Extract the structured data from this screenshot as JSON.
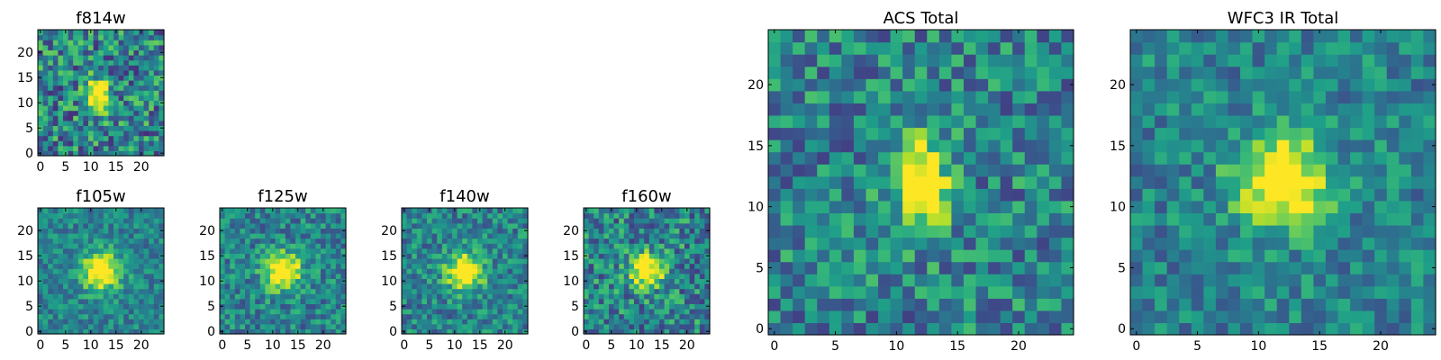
{
  "chart_data": [
    {
      "type": "heatmap",
      "title": "f814w",
      "colormap": "viridis",
      "x_ticks": [
        "0",
        "5",
        "10",
        "15",
        "20"
      ],
      "y_ticks": [
        "0",
        "5",
        "10",
        "15",
        "20"
      ],
      "grid": [
        25,
        25
      ],
      "center": [
        11.5,
        11.5
      ],
      "spread": [
        1.6,
        2.3
      ],
      "noise": 0.32,
      "seed": 11,
      "brightness_range": [
        0,
        1
      ]
    },
    {
      "type": "heatmap",
      "title": "f105w",
      "colormap": "viridis",
      "x_ticks": [
        "0",
        "5",
        "10",
        "15",
        "20"
      ],
      "y_ticks": [
        "0",
        "5",
        "10",
        "15",
        "20"
      ],
      "grid": [
        25,
        25
      ],
      "center": [
        12.0,
        12.0
      ],
      "spread": [
        2.6,
        2.6
      ],
      "noise": 0.18,
      "seed": 23,
      "brightness_range": [
        0,
        1
      ]
    },
    {
      "type": "heatmap",
      "title": "f125w",
      "colormap": "viridis",
      "x_ticks": [
        "0",
        "5",
        "10",
        "15",
        "20"
      ],
      "y_ticks": [
        "0",
        "5",
        "10",
        "15",
        "20"
      ],
      "grid": [
        25,
        25
      ],
      "center": [
        12.0,
        12.0
      ],
      "spread": [
        2.5,
        2.5
      ],
      "noise": 0.22,
      "seed": 37,
      "brightness_range": [
        0,
        1
      ]
    },
    {
      "type": "heatmap",
      "title": "f140w",
      "colormap": "viridis",
      "x_ticks": [
        "0",
        "5",
        "10",
        "15",
        "20"
      ],
      "y_ticks": [
        "0",
        "5",
        "10",
        "15",
        "20"
      ],
      "grid": [
        25,
        25
      ],
      "center": [
        12.0,
        12.0
      ],
      "spread": [
        2.5,
        2.5
      ],
      "noise": 0.22,
      "seed": 41,
      "brightness_range": [
        0,
        1
      ]
    },
    {
      "type": "heatmap",
      "title": "f160w",
      "colormap": "viridis",
      "x_ticks": [
        "0",
        "5",
        "10",
        "15",
        "20"
      ],
      "y_ticks": [
        "0",
        "5",
        "10",
        "15",
        "20"
      ],
      "grid": [
        25,
        25
      ],
      "center": [
        12.0,
        12.0
      ],
      "spread": [
        2.3,
        2.3
      ],
      "noise": 0.28,
      "seed": 53,
      "brightness_range": [
        0,
        1
      ]
    },
    {
      "type": "heatmap",
      "title": "ACS Total",
      "colormap": "viridis",
      "x_ticks": [
        "0",
        "5",
        "10",
        "15",
        "20"
      ],
      "y_ticks": [
        "0",
        "5",
        "10",
        "15",
        "20"
      ],
      "grid": [
        25,
        25
      ],
      "center": [
        12.0,
        12.0
      ],
      "spread": [
        1.6,
        2.6
      ],
      "noise": 0.26,
      "seed": 67,
      "brightness_range": [
        0,
        1
      ]
    },
    {
      "type": "heatmap",
      "title": "WFC3 IR Total",
      "colormap": "viridis",
      "x_ticks": [
        "0",
        "5",
        "10",
        "15",
        "20"
      ],
      "y_ticks": [
        "0",
        "5",
        "10",
        "15",
        "20"
      ],
      "grid": [
        25,
        25
      ],
      "center": [
        12.0,
        12.0
      ],
      "spread": [
        2.6,
        2.6
      ],
      "noise": 0.2,
      "seed": 79,
      "brightness_range": [
        0,
        1
      ]
    }
  ]
}
